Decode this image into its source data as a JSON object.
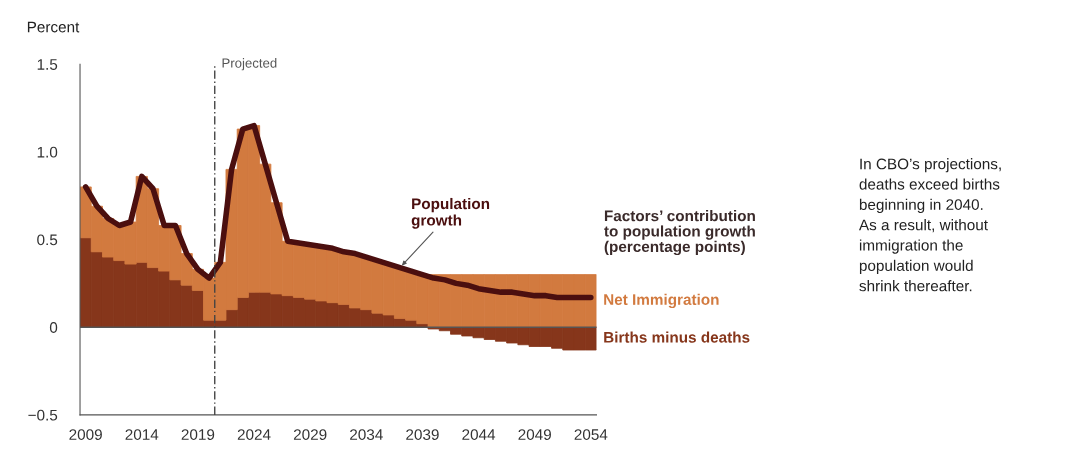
{
  "chart_data": {
    "type": "bar",
    "stacked": true,
    "ylabel": "Percent",
    "x": [
      2009,
      2010,
      2011,
      2012,
      2013,
      2014,
      2015,
      2016,
      2017,
      2018,
      2019,
      2020,
      2021,
      2022,
      2023,
      2024,
      2025,
      2026,
      2027,
      2028,
      2029,
      2030,
      2031,
      2032,
      2033,
      2034,
      2035,
      2036,
      2037,
      2038,
      2039,
      2040,
      2041,
      2042,
      2043,
      2044,
      2045,
      2046,
      2047,
      2048,
      2049,
      2050,
      2051,
      2052,
      2053,
      2054
    ],
    "series": [
      {
        "name": "Births minus deaths",
        "color": "#86361b",
        "values": [
          0.51,
          0.43,
          0.4,
          0.38,
          0.36,
          0.37,
          0.34,
          0.32,
          0.27,
          0.24,
          0.21,
          0.04,
          0.04,
          0.1,
          0.17,
          0.2,
          0.2,
          0.19,
          0.18,
          0.17,
          0.16,
          0.15,
          0.14,
          0.13,
          0.11,
          0.1,
          0.08,
          0.07,
          0.05,
          0.04,
          0.02,
          -0.01,
          -0.02,
          -0.04,
          -0.05,
          -0.06,
          -0.07,
          -0.08,
          -0.09,
          -0.1,
          -0.11,
          -0.11,
          -0.12,
          -0.13,
          -0.13,
          -0.13
        ]
      },
      {
        "name": "Net Immigration",
        "color": "#d27a3f",
        "values": [
          0.29,
          0.26,
          0.22,
          0.2,
          0.24,
          0.49,
          0.45,
          0.26,
          0.31,
          0.18,
          0.12,
          0.24,
          0.33,
          0.8,
          0.96,
          0.95,
          0.73,
          0.52,
          0.31,
          0.31,
          0.31,
          0.31,
          0.31,
          0.3,
          0.31,
          0.3,
          0.3,
          0.29,
          0.29,
          0.28,
          0.28,
          0.3,
          0.3,
          0.3,
          0.3,
          0.3,
          0.3,
          0.3,
          0.3,
          0.3,
          0.3,
          0.3,
          0.3,
          0.3,
          0.3,
          0.3
        ]
      },
      {
        "name": "Population growth",
        "type": "line",
        "color": "#4b0f0f",
        "values": [
          0.8,
          0.69,
          0.62,
          0.58,
          0.6,
          0.86,
          0.79,
          0.58,
          0.58,
          0.42,
          0.33,
          0.28,
          0.37,
          0.9,
          1.13,
          1.15,
          0.93,
          0.71,
          0.49,
          0.48,
          0.47,
          0.46,
          0.45,
          0.43,
          0.42,
          0.4,
          0.38,
          0.36,
          0.34,
          0.32,
          0.3,
          0.28,
          0.27,
          0.25,
          0.24,
          0.22,
          0.21,
          0.2,
          0.2,
          0.19,
          0.18,
          0.18,
          0.17,
          0.17,
          0.17,
          0.17
        ]
      }
    ],
    "xlim": [
      2008.5,
      2054.5
    ],
    "xticks": [
      2009,
      2014,
      2019,
      2024,
      2029,
      2034,
      2039,
      2044,
      2049,
      2054
    ],
    "ylim": [
      -0.5,
      1.5
    ],
    "yticks": [
      {
        "value": -0.5,
        "label": "−0.5"
      },
      0,
      0.5,
      {
        "value": 1.0,
        "label": "1.0"
      },
      1.5
    ],
    "ref_lines": [
      {
        "axis": "x",
        "value": 2020.5,
        "label": "Projected",
        "line_style": "dashed",
        "color": "#444444"
      },
      {
        "axis": "y",
        "value": 0,
        "color": "#555555",
        "line_style": "solid"
      }
    ],
    "annotations": [
      "Factors’ contribution\nto population growth\n(percentage points)",
      "In CBO’s projections,\ndeaths exceed births\nbeginning in 2040.\nAs a result, without\nimmigration the\npopulation would\nshrink thereafter."
    ],
    "grid": false,
    "legend": false
  }
}
